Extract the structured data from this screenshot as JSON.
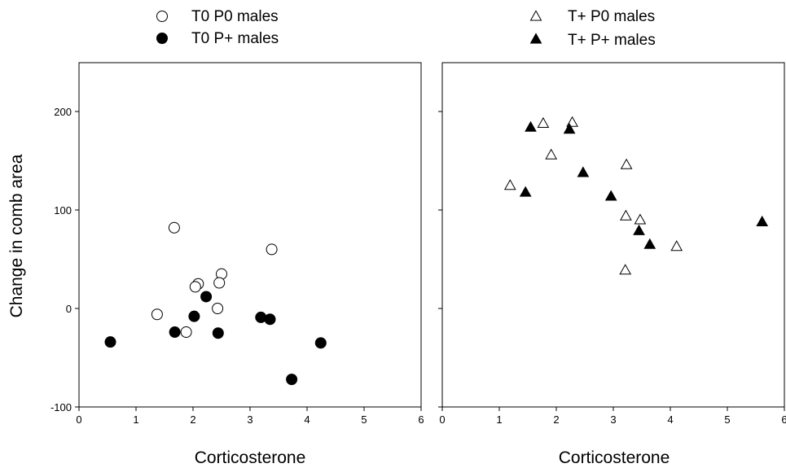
{
  "chart_data": [
    {
      "type": "scatter",
      "xlabel": "Corticosterone",
      "ylabel": "Change in comb area",
      "xlim": [
        0,
        6
      ],
      "ylim": [
        -100,
        250
      ],
      "xticks": [
        "0",
        "1",
        "2",
        "3",
        "4",
        "5",
        "6"
      ],
      "yticks": [
        "-100",
        "0",
        "100",
        "200"
      ],
      "grid": false,
      "legend_position": "top",
      "series": [
        {
          "name": "T0 P0 males",
          "marker": "circle-open",
          "points": [
            {
              "x": 1.67,
              "y": 82
            },
            {
              "x": 2.5,
              "y": 35
            },
            {
              "x": 3.38,
              "y": 60
            },
            {
              "x": 2.09,
              "y": 25
            },
            {
              "x": 2.04,
              "y": 22
            },
            {
              "x": 2.46,
              "y": 26
            },
            {
              "x": 1.37,
              "y": -6
            },
            {
              "x": 2.43,
              "y": 0
            },
            {
              "x": 1.88,
              "y": -24
            }
          ]
        },
        {
          "name": "T0 P+ males",
          "marker": "circle-filled",
          "points": [
            {
              "x": 0.55,
              "y": -34
            },
            {
              "x": 1.68,
              "y": -24
            },
            {
              "x": 2.02,
              "y": -8
            },
            {
              "x": 2.23,
              "y": 12
            },
            {
              "x": 2.44,
              "y": -25
            },
            {
              "x": 3.19,
              "y": -9
            },
            {
              "x": 3.35,
              "y": -11
            },
            {
              "x": 3.73,
              "y": -72
            },
            {
              "x": 4.24,
              "y": -35
            }
          ]
        }
      ]
    },
    {
      "type": "scatter",
      "xlabel": "Corticosterone",
      "ylabel": "",
      "xlim": [
        0,
        6
      ],
      "ylim": [
        -100,
        250
      ],
      "xticks": [
        "0",
        "1",
        "2",
        "3",
        "4",
        "5",
        "6"
      ],
      "yticks": [],
      "grid": false,
      "legend_position": "top",
      "series": [
        {
          "name": "T+ P0 males",
          "marker": "triangle-open",
          "points": [
            {
              "x": 1.19,
              "y": 125
            },
            {
              "x": 1.77,
              "y": 188
            },
            {
              "x": 2.28,
              "y": 189
            },
            {
              "x": 1.91,
              "y": 156
            },
            {
              "x": 3.23,
              "y": 146
            },
            {
              "x": 3.22,
              "y": 94
            },
            {
              "x": 3.47,
              "y": 90
            },
            {
              "x": 3.21,
              "y": 39
            },
            {
              "x": 4.11,
              "y": 63
            }
          ]
        },
        {
          "name": "T+ P+ males",
          "marker": "triangle-filled",
          "points": [
            {
              "x": 1.55,
              "y": 184
            },
            {
              "x": 2.23,
              "y": 182
            },
            {
              "x": 1.46,
              "y": 118
            },
            {
              "x": 2.47,
              "y": 138
            },
            {
              "x": 2.96,
              "y": 114
            },
            {
              "x": 3.45,
              "y": 79
            },
            {
              "x": 3.64,
              "y": 65
            },
            {
              "x": 5.61,
              "y": 88
            }
          ]
        }
      ]
    }
  ]
}
